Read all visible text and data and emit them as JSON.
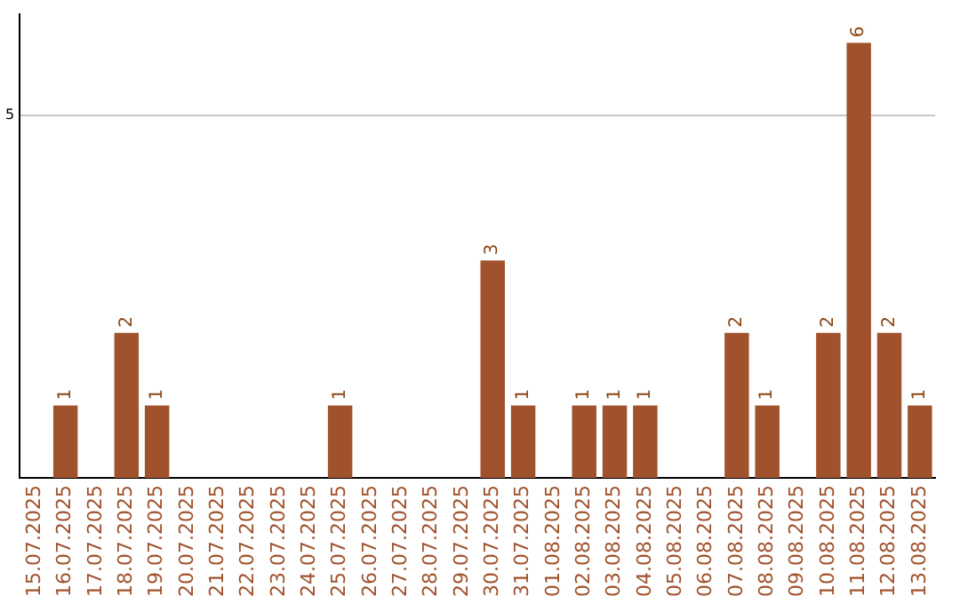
{
  "chart_data": {
    "type": "bar",
    "categories": [
      "15.07.2025",
      "16.07.2025",
      "17.07.2025",
      "18.07.2025",
      "19.07.2025",
      "20.07.2025",
      "21.07.2025",
      "22.07.2025",
      "23.07.2025",
      "24.07.2025",
      "25.07.2025",
      "26.07.2025",
      "27.07.2025",
      "28.07.2025",
      "29.07.2025",
      "30.07.2025",
      "31.07.2025",
      "01.08.2025",
      "02.08.2025",
      "03.08.2025",
      "04.08.2025",
      "05.08.2025",
      "06.08.2025",
      "07.08.2025",
      "08.08.2025",
      "09.08.2025",
      "10.08.2025",
      "11.08.2025",
      "12.08.2025",
      "13.08.2025"
    ],
    "values": [
      0,
      1,
      0,
      2,
      1,
      0,
      0,
      0,
      0,
      0,
      1,
      0,
      0,
      0,
      0,
      3,
      1,
      0,
      1,
      1,
      1,
      0,
      0,
      2,
      1,
      0,
      2,
      6,
      2,
      1
    ],
    "value_labels": [
      null,
      "1",
      null,
      "2",
      "1",
      null,
      null,
      null,
      null,
      null,
      "1",
      null,
      null,
      null,
      null,
      "3",
      "1",
      null,
      "1",
      "1",
      "1",
      null,
      null,
      "2",
      "1",
      null,
      "2",
      "6",
      "2",
      "1"
    ],
    "color": "#a0522d",
    "ylim": [
      0,
      6.4
    ],
    "yticks": [
      5
    ],
    "grid": "y"
  }
}
